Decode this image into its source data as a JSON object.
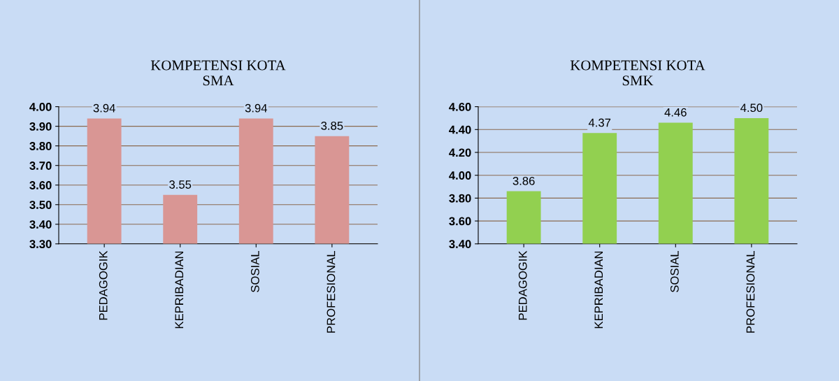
{
  "chart_data": [
    {
      "type": "bar",
      "title": "KOMPETENSI KOTA\nSMA",
      "categories": [
        "PEDAGOGIK",
        "KEPRIBADIAN",
        "SOSIAL",
        "PROFESIONAL"
      ],
      "values": [
        3.94,
        3.55,
        3.94,
        3.85
      ],
      "value_labels": [
        "3.94",
        "3.55",
        "3.94",
        "3.85"
      ],
      "color": "#d99694",
      "ylim": [
        3.3,
        4.0
      ],
      "yticks": [
        {
          "value": 3.3,
          "label": "3.30"
        },
        {
          "value": 3.4,
          "label": "3.40"
        },
        {
          "value": 3.5,
          "label": "3.50"
        },
        {
          "value": 3.6,
          "label": "3.60"
        },
        {
          "value": 3.7,
          "label": "3.70"
        },
        {
          "value": 3.8,
          "label": "3.80"
        },
        {
          "value": 3.9,
          "label": "3.90"
        },
        {
          "value": 4.0,
          "label": "4.00"
        }
      ],
      "grid": "y"
    },
    {
      "type": "bar",
      "title": "KOMPETENSI KOTA\nSMK",
      "categories": [
        "PEDAGOGIK",
        "KEPRIBADIAN",
        "SOSIAL",
        "PROFESIONAL"
      ],
      "values": [
        3.86,
        4.37,
        4.46,
        4.5
      ],
      "value_labels": [
        "3.86",
        "4.37",
        "4.46",
        "4.50"
      ],
      "color": "#92d050",
      "ylim": [
        3.4,
        4.6
      ],
      "yticks": [
        {
          "value": 3.4,
          "label": "3.40"
        },
        {
          "value": 3.6,
          "label": "3.60"
        },
        {
          "value": 3.8,
          "label": "3.80"
        },
        {
          "value": 4.0,
          "label": "4.00"
        },
        {
          "value": 4.2,
          "label": "4.20"
        },
        {
          "value": 4.4,
          "label": "4.40"
        },
        {
          "value": 4.6,
          "label": "4.60"
        }
      ],
      "grid": "y"
    }
  ]
}
